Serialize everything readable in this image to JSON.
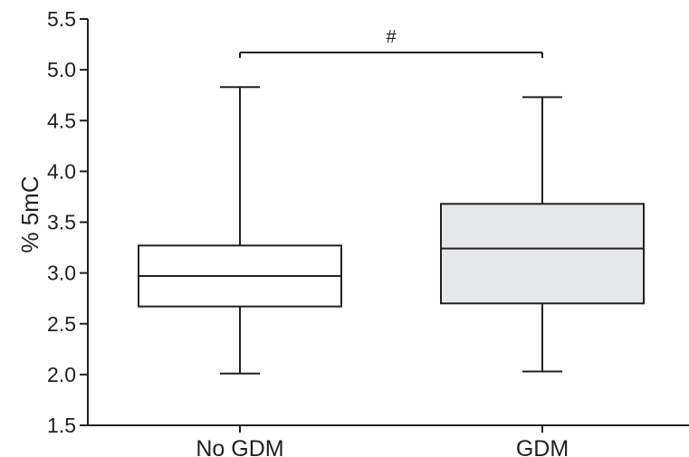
{
  "chart_data": {
    "type": "box",
    "ylabel": "% 5mC",
    "ylim": [
      1.5,
      5.5
    ],
    "yticks": [
      "1.5",
      "2.0",
      "2.5",
      "3.0",
      "3.5",
      "4.0",
      "4.5",
      "5.0",
      "5.5"
    ],
    "categories": [
      "No GDM",
      "GDM"
    ],
    "boxes": [
      {
        "category": "No GDM",
        "min": 2.01,
        "q1": 2.67,
        "median": 2.97,
        "q3": 3.27,
        "max": 4.83,
        "fill": "#ffffff"
      },
      {
        "category": "GDM",
        "min": 2.03,
        "q1": 2.7,
        "median": 3.24,
        "q3": 3.68,
        "max": 4.73,
        "fill": "#e6e7e8"
      }
    ],
    "significance": {
      "label": "#",
      "between": [
        "No GDM",
        "GDM"
      ],
      "y": 5.17
    },
    "grid": false,
    "colors": {
      "stroke": "#231f20"
    }
  }
}
